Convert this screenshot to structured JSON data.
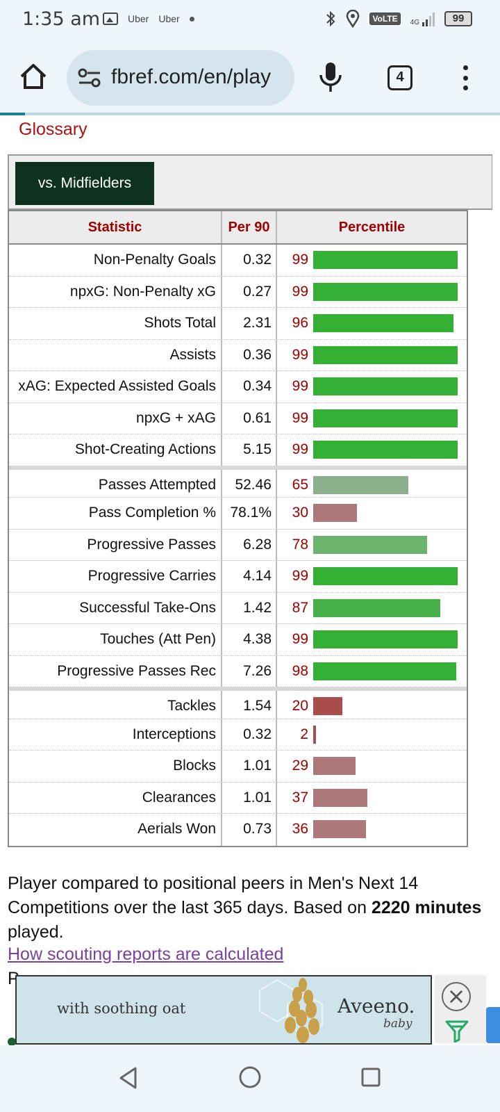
{
  "status_bar": {
    "time": "1:35 am",
    "notif_1": "Uber",
    "notif_2": "Uber",
    "volte": "VoLTE",
    "network": "4G",
    "battery": "99"
  },
  "browser": {
    "url": "fbref.com/en/play",
    "tab_count": "4"
  },
  "page": {
    "glossary_link": "Glossary",
    "filter_button": "vs. Midfielders",
    "table": {
      "headers": [
        "Statistic",
        "Per 90",
        "Percentile"
      ],
      "colors": {
        "high": "#34b034",
        "good": "#48b048",
        "mid": "#8cb08c",
        "midgreen": "#6cb46c",
        "low": "#ad7878",
        "lowest": "#a84c4c"
      },
      "groups": [
        {
          "rows": [
            {
              "stat": "Non-Penalty Goals",
              "per90": "0.32",
              "percentile": 99
            },
            {
              "stat": "npxG: Non-Penalty xG",
              "per90": "0.27",
              "percentile": 99
            },
            {
              "stat": "Shots Total",
              "per90": "2.31",
              "percentile": 96
            },
            {
              "stat": "Assists",
              "per90": "0.36",
              "percentile": 99
            },
            {
              "stat": "xAG: Expected Assisted Goals",
              "per90": "0.34",
              "percentile": 99
            },
            {
              "stat": "npxG + xAG",
              "per90": "0.61",
              "percentile": 99
            },
            {
              "stat": "Shot-Creating Actions",
              "per90": "5.15",
              "percentile": 99
            }
          ]
        },
        {
          "rows": [
            {
              "stat": "Passes Attempted",
              "per90": "52.46",
              "percentile": 65
            },
            {
              "stat": "Pass Completion %",
              "per90": "78.1%",
              "percentile": 30
            },
            {
              "stat": "Progressive Passes",
              "per90": "6.28",
              "percentile": 78
            },
            {
              "stat": "Progressive Carries",
              "per90": "4.14",
              "percentile": 99
            },
            {
              "stat": "Successful Take-Ons",
              "per90": "1.42",
              "percentile": 87
            },
            {
              "stat": "Touches (Att Pen)",
              "per90": "4.38",
              "percentile": 99
            },
            {
              "stat": "Progressive Passes Rec",
              "per90": "7.26",
              "percentile": 98
            }
          ]
        },
        {
          "rows": [
            {
              "stat": "Tackles",
              "per90": "1.54",
              "percentile": 20
            },
            {
              "stat": "Interceptions",
              "per90": "0.32",
              "percentile": 2
            },
            {
              "stat": "Blocks",
              "per90": "1.01",
              "percentile": 29
            },
            {
              "stat": "Clearances",
              "per90": "1.01",
              "percentile": 37
            },
            {
              "stat": "Aerials Won",
              "per90": "0.73",
              "percentile": 36
            }
          ]
        }
      ]
    },
    "description_1": "Player compared to positional peers in Men's Next 14 Competitions over the last 365 days. Based on ",
    "description_minutes": "2220 minutes",
    "description_2": " played.",
    "how_link": "How scouting reports are calculated",
    "cut_text": "P"
  },
  "ad": {
    "text": "with soothing oat",
    "brand": "Aveeno.",
    "sub": "baby"
  }
}
